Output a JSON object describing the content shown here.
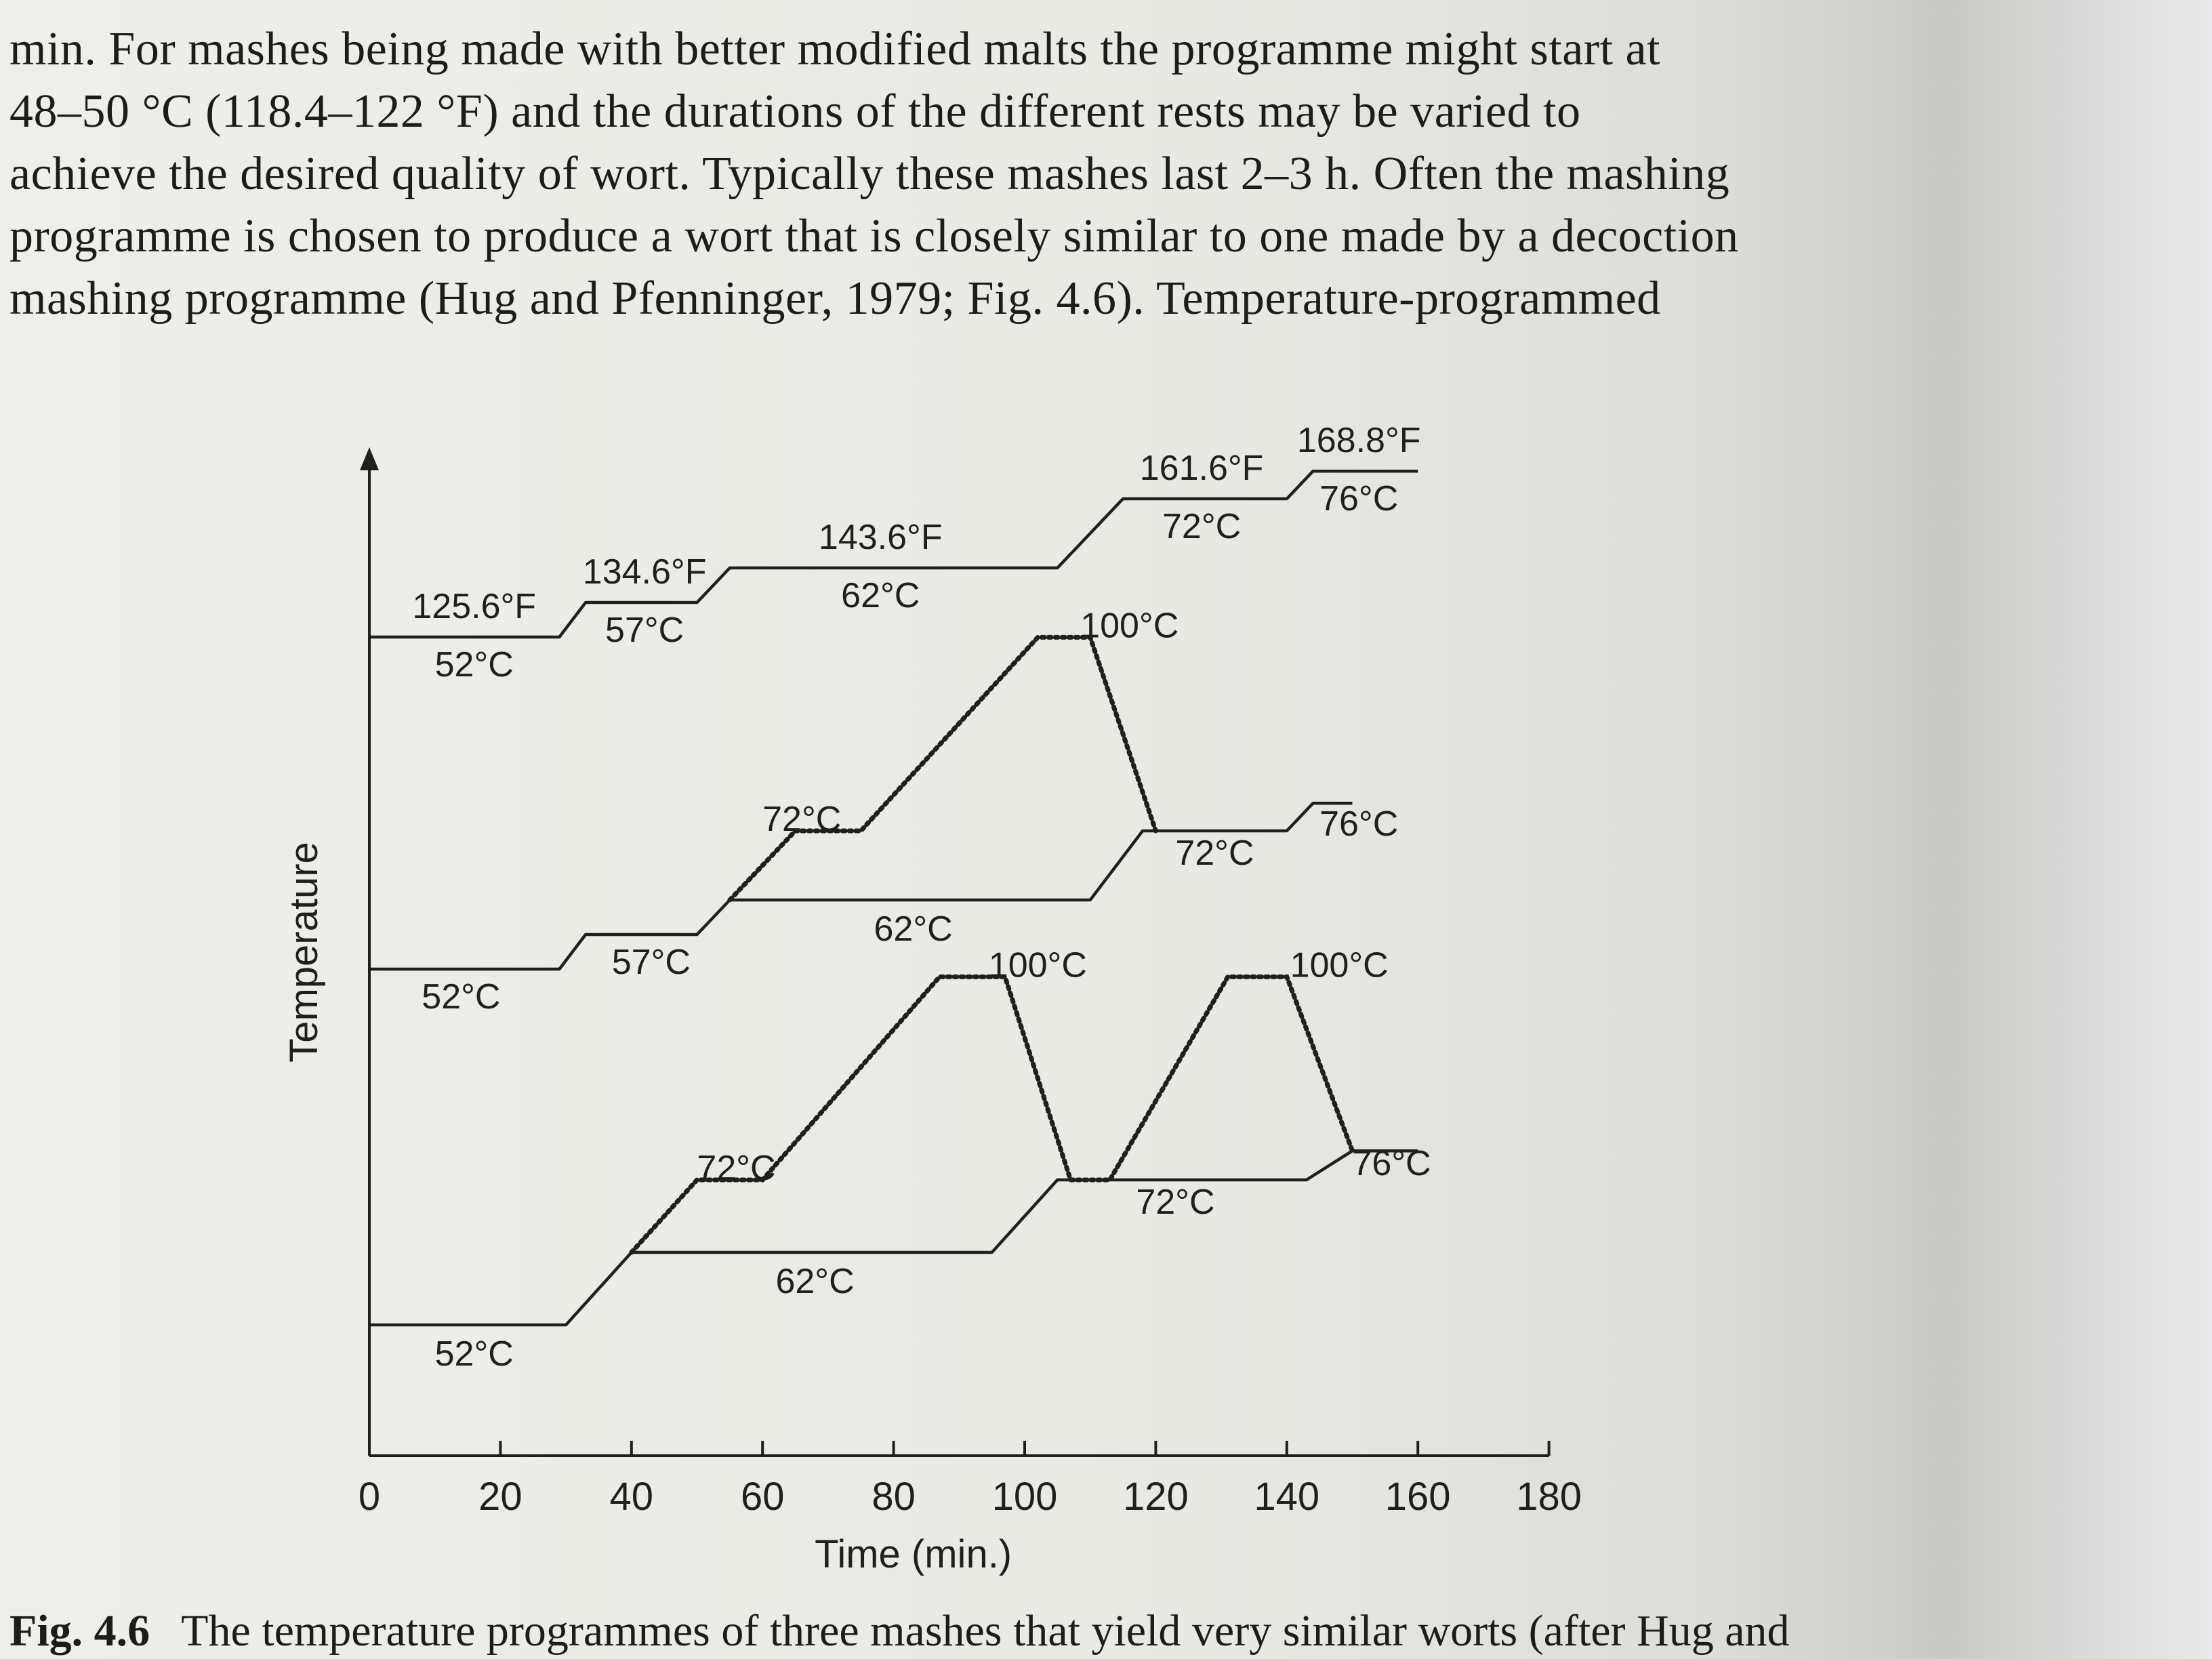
{
  "body_text": {
    "lines": [
      "min. For mashes being made with better modified malts the programme might start at",
      "48–50 °C (118.4–122 °F) and the durations of the different rests may be varied to",
      "achieve the desired quality of wort. Typically these mashes last 2–3 h. Often the mashing",
      "programme is chosen to produce a wort that is closely similar to one made by a decoction",
      "mashing programme (Hug and Pfenninger, 1979; Fig. 4.6). Temperature-programmed"
    ]
  },
  "caption": {
    "label": "Fig. 4.6",
    "text": "The temperature programmes of three mashes that yield very similar worts (after Hug and"
  },
  "colors": {
    "ink": "#1f1f1f",
    "paper": "#eeeeea"
  },
  "chart_data": {
    "type": "line",
    "title": "",
    "xlabel": "Time (min.)",
    "ylabel": "Temperature",
    "x_ticks": [
      0,
      20,
      40,
      60,
      80,
      100,
      120,
      140,
      160,
      180
    ],
    "xlim": [
      0,
      180
    ],
    "y_axis_numeric_labels": false,
    "series": [
      {
        "mash": 1,
        "line_style": "solid",
        "points": [
          [
            0,
            52
          ],
          [
            29,
            52
          ],
          [
            33,
            57
          ],
          [
            50,
            57
          ],
          [
            55,
            62
          ],
          [
            105,
            62
          ],
          [
            115,
            72
          ],
          [
            140,
            72
          ],
          [
            144,
            76
          ],
          [
            160,
            76
          ]
        ],
        "labels": [
          {
            "text": "125.6°F",
            "at_x": 16
          },
          {
            "text": "52°C",
            "at_x": 16
          },
          {
            "text": "134.6°F",
            "at_x": 42
          },
          {
            "text": "57°C",
            "at_x": 42
          },
          {
            "text": "143.6°F",
            "at_x": 78
          },
          {
            "text": "62°C",
            "at_x": 78
          },
          {
            "text": "161.6°F",
            "at_x": 127
          },
          {
            "text": "72°C",
            "at_x": 127
          },
          {
            "text": "168.8°F",
            "at_x": 151
          },
          {
            "text": "76°C",
            "at_x": 151
          }
        ]
      },
      {
        "mash": 2,
        "line_style": "solid",
        "points": [
          [
            0,
            52
          ],
          [
            29,
            52
          ],
          [
            33,
            57
          ],
          [
            50,
            57
          ],
          [
            55,
            62
          ],
          [
            110,
            62
          ],
          [
            118,
            72
          ],
          [
            140,
            72
          ],
          [
            144,
            76
          ],
          [
            150,
            76
          ]
        ],
        "decoction": {
          "line_style": "dotted",
          "points": [
            [
              55,
              62
            ],
            [
              65,
              72
            ],
            [
              75,
              72
            ],
            [
              102,
              100
            ],
            [
              110,
              100
            ],
            [
              120,
              72
            ]
          ]
        },
        "labels": [
          {
            "text": "52°C",
            "at_x": 14
          },
          {
            "text": "57°C",
            "at_x": 43
          },
          {
            "text": "62°C",
            "at_x": 83
          },
          {
            "text": "72°C",
            "at_x": 66
          },
          {
            "text": "100°C",
            "at_x": 116
          },
          {
            "text": "72°C",
            "at_x": 129
          },
          {
            "text": "76°C",
            "at_x": 151
          }
        ]
      },
      {
        "mash": 3,
        "line_style": "solid",
        "points": [
          [
            0,
            52
          ],
          [
            30,
            52
          ],
          [
            40,
            62
          ],
          [
            95,
            62
          ],
          [
            105,
            72
          ],
          [
            143,
            72
          ],
          [
            150,
            76
          ],
          [
            160,
            76
          ]
        ],
        "decoction": {
          "line_style": "dotted",
          "points": [
            [
              40,
              62
            ],
            [
              50,
              72
            ],
            [
              60,
              72
            ],
            [
              87,
              100
            ],
            [
              97,
              100
            ],
            [
              107,
              72
            ],
            [
              113,
              72
            ],
            [
              131,
              100
            ],
            [
              140,
              100
            ],
            [
              150,
              76
            ]
          ]
        },
        "labels": [
          {
            "text": "52°C",
            "at_x": 16
          },
          {
            "text": "62°C",
            "at_x": 68
          },
          {
            "text": "72°C",
            "at_x": 56
          },
          {
            "text": "100°C",
            "at_x": 102
          },
          {
            "text": "100°C",
            "at_x": 148
          },
          {
            "text": "72°C",
            "at_x": 123
          },
          {
            "text": "76°C",
            "at_x": 156
          }
        ]
      }
    ]
  }
}
